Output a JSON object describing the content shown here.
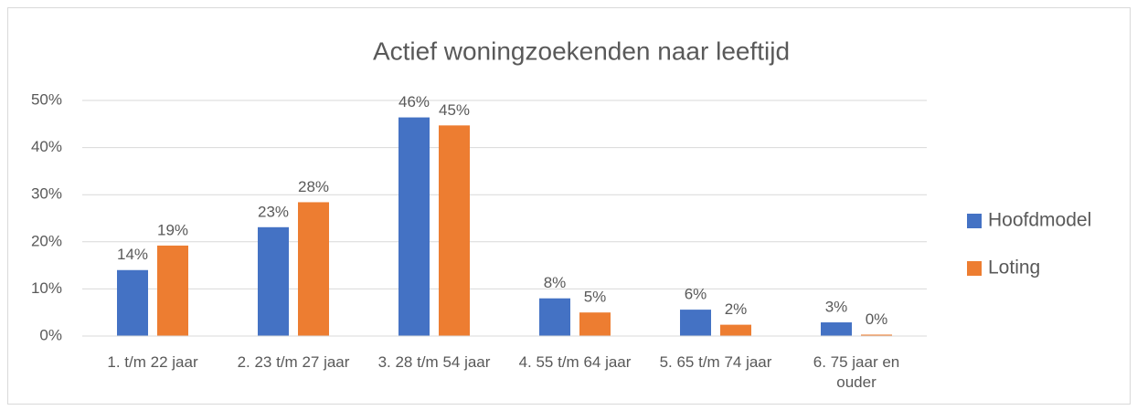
{
  "chart_data": {
    "type": "bar",
    "title": "Actief woningzoekenden naar leeftijd",
    "categories": [
      "1. t/m 22 jaar",
      "2. 23 t/m 27 jaar",
      "3. 28 t/m 54 jaar",
      "4. 55 t/m 64 jaar",
      "5. 65 t/m 74 jaar",
      "6. 75 jaar en ouder"
    ],
    "series": [
      {
        "name": "Hoofdmodel",
        "color": "#4472c4",
        "values": [
          14,
          23.1,
          46.4,
          8,
          5.6,
          2.9
        ],
        "value_labels": [
          "14%",
          "23%",
          "46%",
          "8%",
          "6%",
          "3%"
        ]
      },
      {
        "name": "Loting",
        "color": "#ed7d31",
        "values": [
          19.2,
          28.4,
          44.7,
          5,
          2.4,
          0.3
        ],
        "value_labels": [
          "19%",
          "28%",
          "45%",
          "5%",
          "2%",
          "0%"
        ]
      }
    ],
    "ylim": [
      0,
      50
    ],
    "yticks": [
      {
        "value": 0,
        "label": "0%"
      },
      {
        "value": 10,
        "label": "10%"
      },
      {
        "value": 20,
        "label": "20%"
      },
      {
        "value": 30,
        "label": "30%"
      },
      {
        "value": 40,
        "label": "40%"
      },
      {
        "value": 50,
        "label": "50%"
      }
    ],
    "grid": true,
    "legend": "right"
  }
}
